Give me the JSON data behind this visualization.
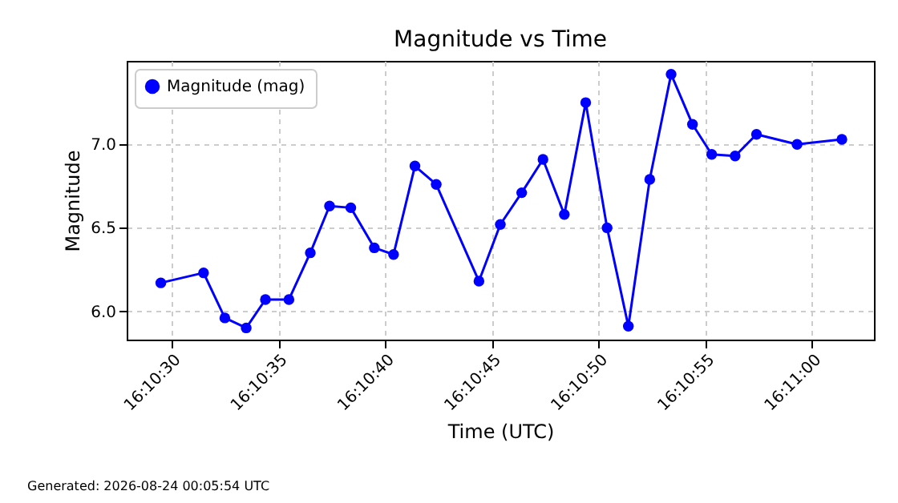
{
  "chart_data": {
    "type": "line",
    "title": "Magnitude vs Time",
    "xlabel": "Time (UTC)",
    "ylabel": "Magnitude",
    "x": [
      16.174861,
      16.175417,
      16.175694,
      16.175972,
      16.176222,
      16.176528,
      16.176806,
      16.177056,
      16.177333,
      16.177639,
      16.177889,
      16.178167,
      16.178444,
      16.179,
      16.179278,
      16.179556,
      16.179833,
      16.180111,
      16.180389,
      16.180667,
      16.180944,
      16.181222,
      16.1815,
      16.181778,
      16.182028,
      16.182333,
      16.182611,
      16.183139,
      16.183722
    ],
    "series": [
      {
        "name": "Magnitude (mag)",
        "color": "#0000ff",
        "values": [
          6.17,
          6.23,
          5.96,
          5.9,
          6.07,
          6.07,
          6.35,
          6.63,
          6.62,
          6.38,
          6.34,
          6.87,
          6.76,
          6.18,
          6.52,
          6.71,
          6.91,
          6.58,
          7.25,
          6.5,
          5.91,
          6.79,
          7.42,
          7.12,
          6.94,
          6.93,
          7.06,
          7.0,
          7.03
        ]
      }
    ],
    "xlim": [
      16.174417,
      16.184139
    ],
    "xticks": [
      {
        "value": 16.175,
        "label": "16:10:30"
      },
      {
        "value": 16.176389,
        "label": "16:10:35"
      },
      {
        "value": 16.177778,
        "label": "16:10:40"
      },
      {
        "value": 16.179167,
        "label": "16:10:45"
      },
      {
        "value": 16.180556,
        "label": "16:10:50"
      },
      {
        "value": 16.181944,
        "label": "16:10:55"
      },
      {
        "value": 16.183333,
        "label": "16:11:00"
      }
    ],
    "ylim": [
      5.83,
      7.5
    ],
    "yticks": [
      {
        "value": 6,
        "label": "6.0"
      },
      6.5,
      {
        "value": 7,
        "label": "7.0"
      }
    ],
    "grid": true,
    "legend": "top left",
    "marker": "circle",
    "line_style": "solid",
    "annotations": [
      "Generated: 2026-08-24 00:05:54 UTC"
    ]
  }
}
